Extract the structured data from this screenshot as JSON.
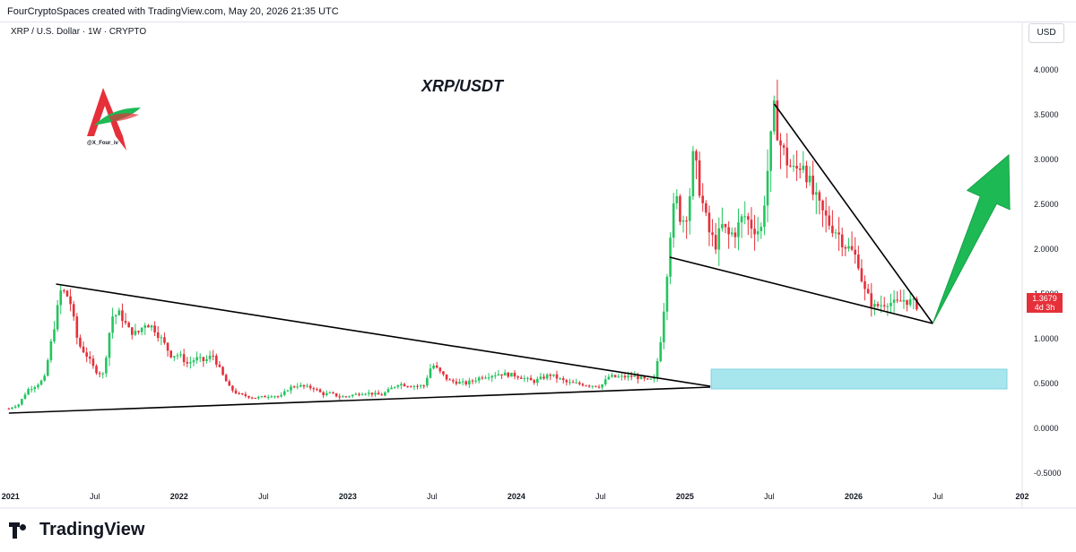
{
  "header": {
    "text": "FourCryptoSpaces created with TradingView.com, May 20, 2026 21:35 UTC"
  },
  "symbol": {
    "text": "XRP / U.S. Dollar · 1W · CRYPTO"
  },
  "currency_button": {
    "label": "USD"
  },
  "watermark": {
    "handle": "@X_Four_iv"
  },
  "price_badge": {
    "price": "1.3679",
    "countdown": "4d 3h"
  },
  "footer": {
    "brand": "TradingView"
  },
  "colors": {
    "up": "#22c55e",
    "down": "#e5303a",
    "zone": "#a8e6ee",
    "arrow": "#1db954",
    "line": "#000000"
  },
  "chart_data": {
    "type": "candlestick",
    "title": "XRP/USDT",
    "y_ticks": [
      "4.0000",
      "3.5000",
      "3.0000",
      "2.5000",
      "2.0000",
      "1.5000",
      "1.0000",
      "0.5000",
      "0.0000",
      "-0.5000"
    ],
    "y_tick_values": [
      4.0,
      3.5,
      3.0,
      2.5,
      2.0,
      1.5,
      1.0,
      0.5,
      0.0,
      -0.5
    ],
    "x_ticks": [
      {
        "label": "2021",
        "t": 2021.0,
        "bold": true
      },
      {
        "label": "Jul",
        "t": 2021.5,
        "bold": false
      },
      {
        "label": "2022",
        "t": 2022.0,
        "bold": true
      },
      {
        "label": "Jul",
        "t": 2022.5,
        "bold": false
      },
      {
        "label": "2023",
        "t": 2023.0,
        "bold": true
      },
      {
        "label": "Jul",
        "t": 2023.5,
        "bold": false
      },
      {
        "label": "2024",
        "t": 2024.0,
        "bold": true
      },
      {
        "label": "Jul",
        "t": 2024.5,
        "bold": false
      },
      {
        "label": "2025",
        "t": 2025.0,
        "bold": true
      },
      {
        "label": "Jul",
        "t": 2025.5,
        "bold": false
      },
      {
        "label": "2026",
        "t": 2026.0,
        "bold": true
      },
      {
        "label": "Jul",
        "t": 2026.5,
        "bold": false
      },
      {
        "label": "202",
        "t": 2027.0,
        "bold": true
      }
    ],
    "price_path": [
      [
        2020.99,
        0.22
      ],
      [
        2021.05,
        0.27
      ],
      [
        2021.1,
        0.43
      ],
      [
        2021.15,
        0.48
      ],
      [
        2021.2,
        0.55
      ],
      [
        2021.25,
        1.05
      ],
      [
        2021.3,
        1.55
      ],
      [
        2021.35,
        1.45
      ],
      [
        2021.4,
        0.95
      ],
      [
        2021.45,
        0.82
      ],
      [
        2021.5,
        0.65
      ],
      [
        2021.55,
        0.6
      ],
      [
        2021.6,
        1.25
      ],
      [
        2021.65,
        1.28
      ],
      [
        2021.7,
        1.1
      ],
      [
        2021.75,
        1.05
      ],
      [
        2021.8,
        1.18
      ],
      [
        2021.85,
        1.12
      ],
      [
        2021.9,
        0.98
      ],
      [
        2021.95,
        0.82
      ],
      [
        2022.0,
        0.82
      ],
      [
        2022.05,
        0.72
      ],
      [
        2022.1,
        0.78
      ],
      [
        2022.15,
        0.75
      ],
      [
        2022.2,
        0.82
      ],
      [
        2022.25,
        0.62
      ],
      [
        2022.3,
        0.45
      ],
      [
        2022.35,
        0.38
      ],
      [
        2022.4,
        0.36
      ],
      [
        2022.45,
        0.34
      ],
      [
        2022.5,
        0.35
      ],
      [
        2022.55,
        0.37
      ],
      [
        2022.6,
        0.35
      ],
      [
        2022.65,
        0.45
      ],
      [
        2022.7,
        0.48
      ],
      [
        2022.75,
        0.46
      ],
      [
        2022.8,
        0.45
      ],
      [
        2022.85,
        0.38
      ],
      [
        2022.9,
        0.39
      ],
      [
        2022.95,
        0.35
      ],
      [
        2023.0,
        0.36
      ],
      [
        2023.1,
        0.4
      ],
      [
        2023.2,
        0.37
      ],
      [
        2023.3,
        0.5
      ],
      [
        2023.35,
        0.48
      ],
      [
        2023.45,
        0.47
      ],
      [
        2023.5,
        0.72
      ],
      [
        2023.55,
        0.62
      ],
      [
        2023.6,
        0.53
      ],
      [
        2023.7,
        0.5
      ],
      [
        2023.8,
        0.58
      ],
      [
        2023.9,
        0.61
      ],
      [
        2024.0,
        0.59
      ],
      [
        2024.1,
        0.52
      ],
      [
        2024.2,
        0.6
      ],
      [
        2024.3,
        0.51
      ],
      [
        2024.4,
        0.49
      ],
      [
        2024.5,
        0.47
      ],
      [
        2024.55,
        0.58
      ],
      [
        2024.6,
        0.57
      ],
      [
        2024.7,
        0.58
      ],
      [
        2024.75,
        0.55
      ],
      [
        2024.78,
        0.53
      ],
      [
        2024.82,
        0.55
      ],
      [
        2024.86,
        1.05
      ],
      [
        2024.88,
        1.45
      ],
      [
        2024.9,
        1.9
      ],
      [
        2024.92,
        2.35
      ],
      [
        2024.95,
        2.55
      ],
      [
        2024.98,
        2.3
      ],
      [
        2025.02,
        2.45
      ],
      [
        2025.05,
        3.05
      ],
      [
        2025.08,
        2.75
      ],
      [
        2025.11,
        2.45
      ],
      [
        2025.14,
        2.2
      ],
      [
        2025.18,
        2.05
      ],
      [
        2025.22,
        2.25
      ],
      [
        2025.26,
        2.15
      ],
      [
        2025.3,
        2.2
      ],
      [
        2025.35,
        2.38
      ],
      [
        2025.4,
        2.25
      ],
      [
        2025.45,
        2.2
      ],
      [
        2025.5,
        3.05
      ],
      [
        2025.53,
        3.55
      ],
      [
        2025.56,
        3.2
      ],
      [
        2025.6,
        3.0
      ],
      [
        2025.65,
        2.85
      ],
      [
        2025.7,
        3.0
      ],
      [
        2025.75,
        2.65
      ],
      [
        2025.8,
        2.45
      ],
      [
        2025.85,
        2.3
      ],
      [
        2025.9,
        2.2
      ],
      [
        2025.95,
        2.05
      ],
      [
        2026.0,
        1.95
      ],
      [
        2026.03,
        1.85
      ],
      [
        2026.06,
        1.55
      ],
      [
        2026.09,
        1.45
      ],
      [
        2026.12,
        1.35
      ],
      [
        2026.16,
        1.38
      ],
      [
        2026.2,
        1.42
      ],
      [
        2026.25,
        1.38
      ],
      [
        2026.3,
        1.44
      ],
      [
        2026.35,
        1.4
      ],
      [
        2026.38,
        1.37
      ]
    ],
    "trendlines": [
      {
        "name": "upper-triangle-line",
        "from": [
          2021.27,
          1.61
        ],
        "to": [
          2025.15,
          0.47
        ]
      },
      {
        "name": "lower-triangle-line",
        "from": [
          2020.99,
          0.17
        ],
        "to": [
          2025.15,
          0.46
        ]
      },
      {
        "name": "wedge-upper-line",
        "from": [
          2025.53,
          3.62
        ],
        "to": [
          2026.47,
          1.17
        ]
      },
      {
        "name": "wedge-lower-line",
        "from": [
          2024.91,
          1.91
        ],
        "to": [
          2026.47,
          1.17
        ]
      }
    ],
    "zone": {
      "from_t": 2025.15,
      "to_t": 2027.0,
      "from_price": 0.44,
      "to_price": 0.66
    },
    "projection_arrow": {
      "from": [
        2026.47,
        1.17
      ],
      "to": [
        2026.92,
        3.05
      ]
    },
    "ylim": [
      -0.62,
      4.3
    ],
    "xlim": [
      2020.98,
      2027.0
    ],
    "grid": false
  }
}
